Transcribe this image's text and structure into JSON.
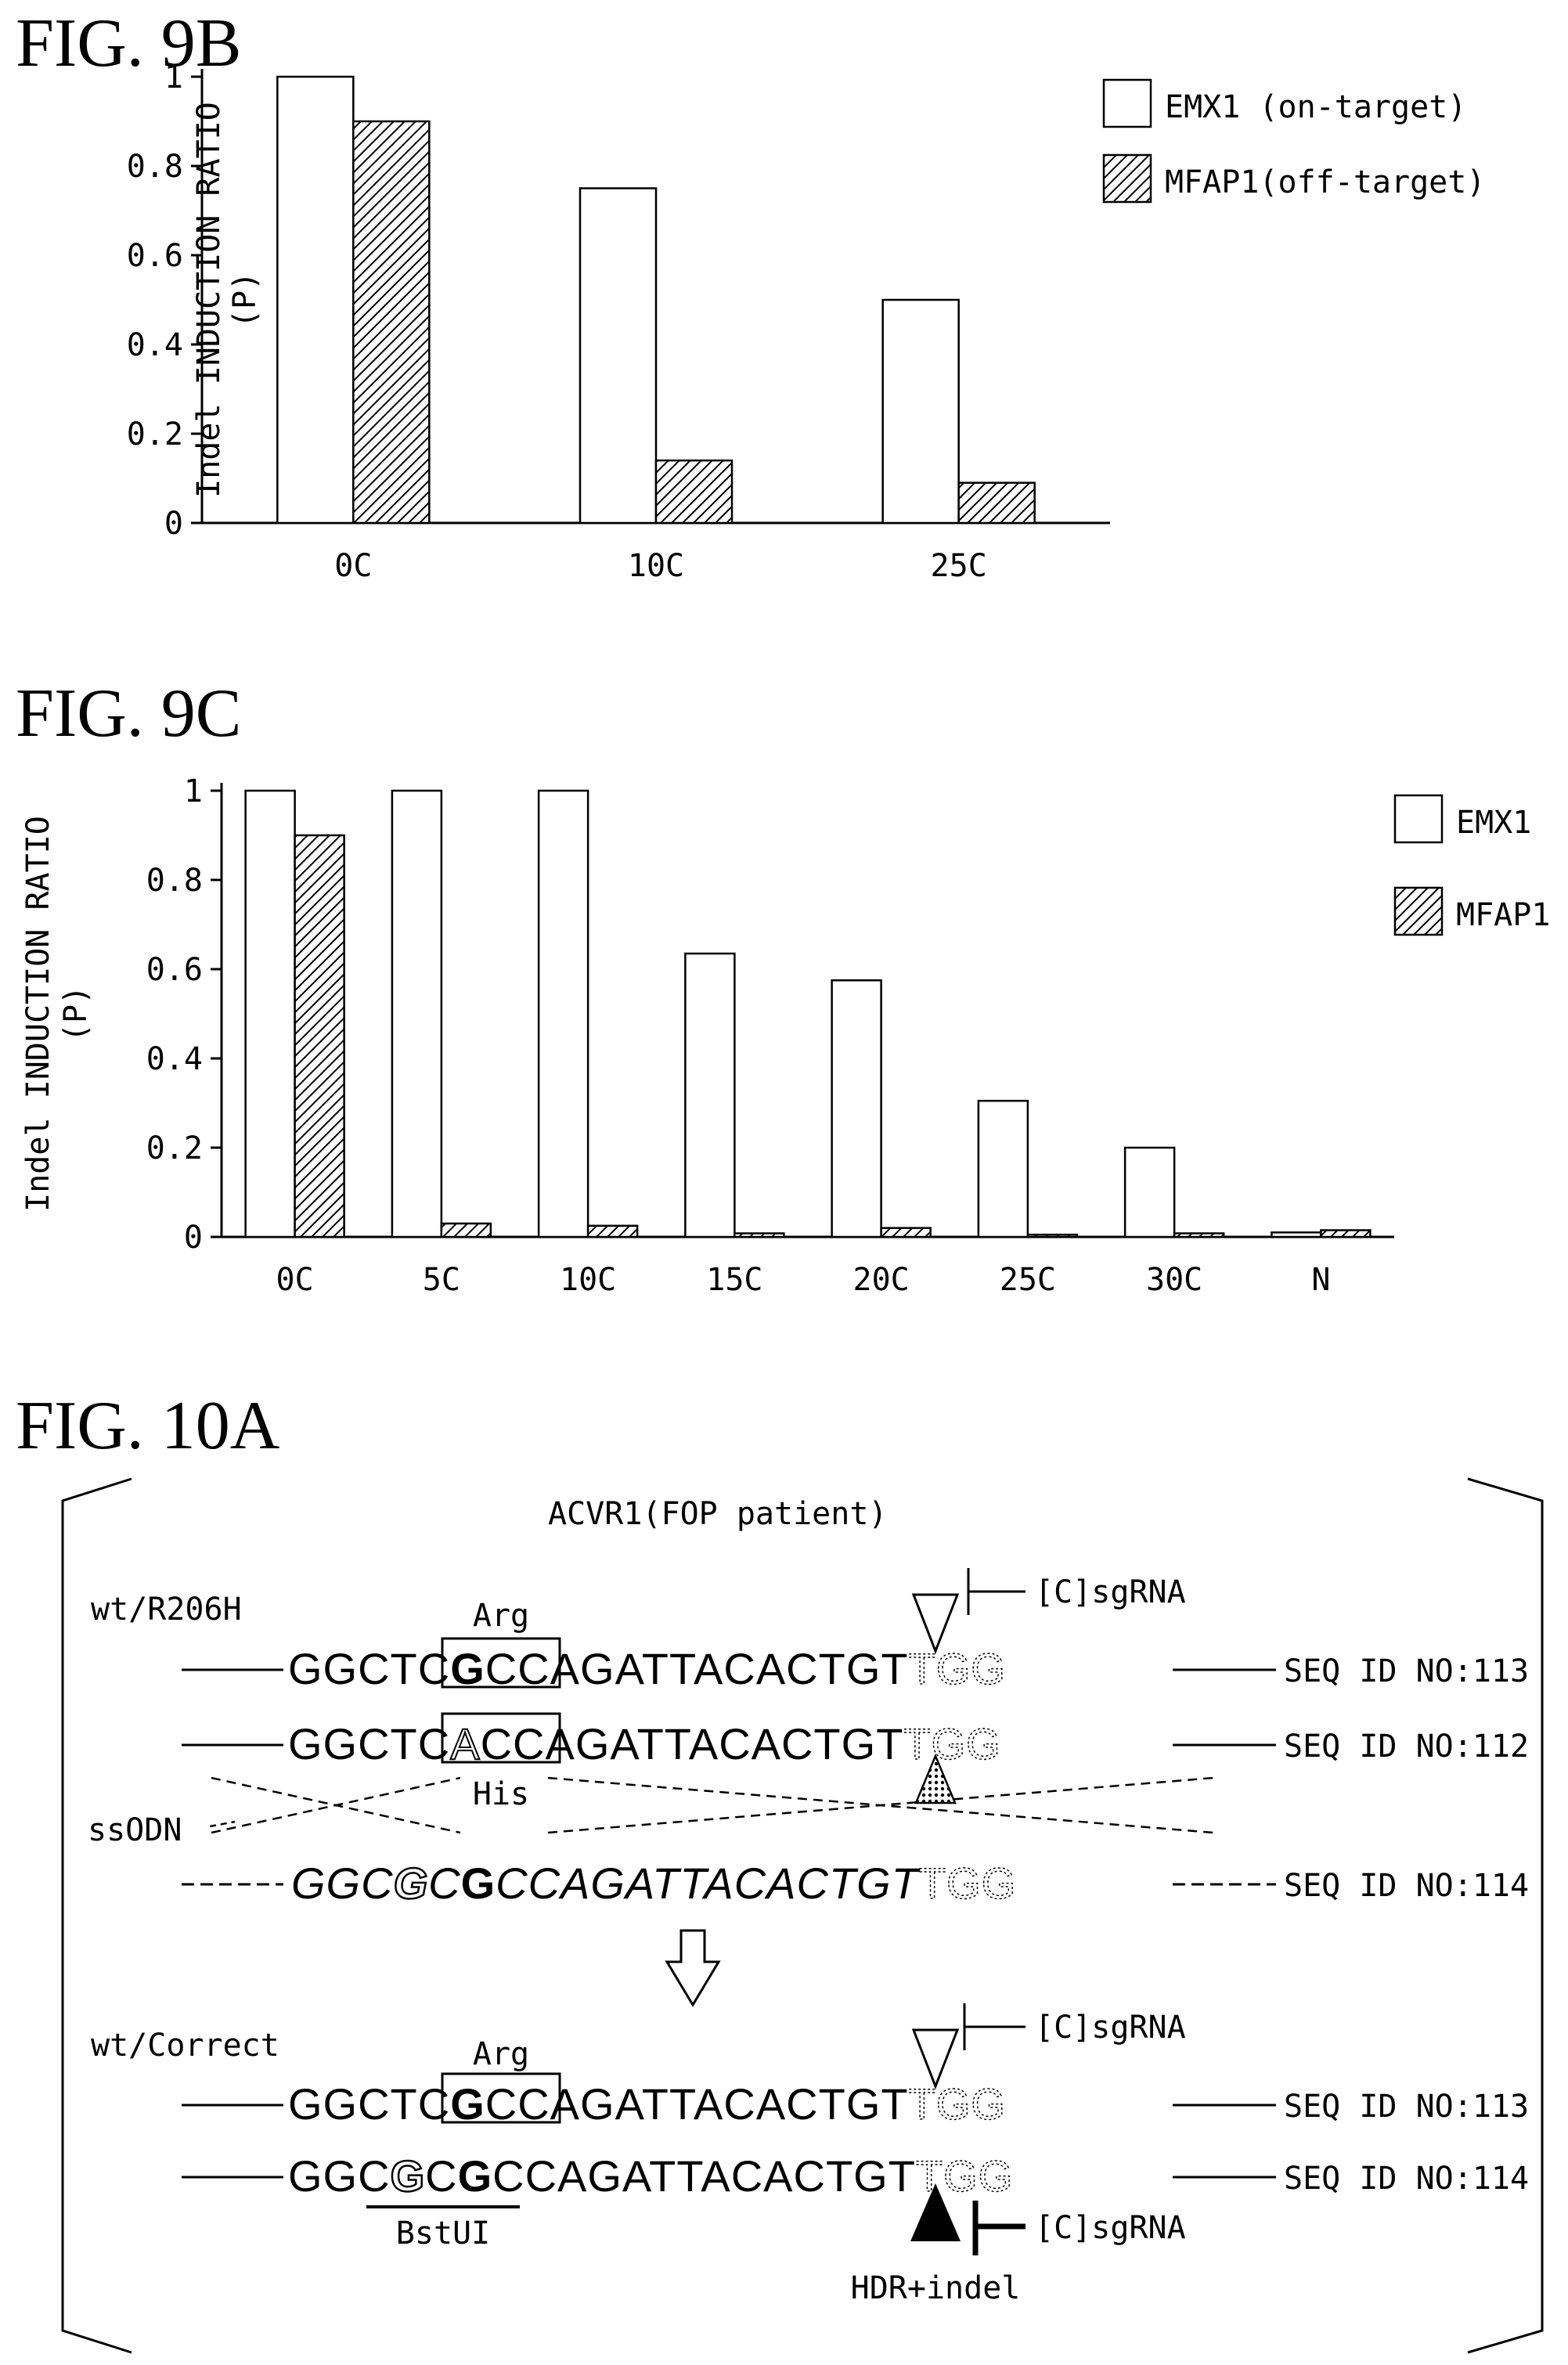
{
  "titles": {
    "fig9b": "FIG. 9B",
    "fig9c": "FIG. 9C",
    "fig10a": "FIG. 10A"
  },
  "chart_data": [
    {
      "id": "fig9b",
      "type": "bar",
      "ylabel_line1": "Indel INDUCTION RATIO",
      "ylabel_line2": "(P)",
      "ylim": [
        0,
        1
      ],
      "yticks": [
        "0",
        "0.2",
        "0.4",
        "0.6",
        "0.8",
        "1"
      ],
      "categories": [
        "0C",
        "10C",
        "25C"
      ],
      "series": [
        {
          "name": "EMX1 (on-target)",
          "fill": "white",
          "values": [
            1.0,
            0.75,
            0.5
          ]
        },
        {
          "name": "MFAP1(off-target)",
          "fill": "hatch",
          "values": [
            0.9,
            0.14,
            0.09
          ]
        }
      ],
      "legend": "top-right",
      "grid": false
    },
    {
      "id": "fig9c",
      "type": "bar",
      "ylabel_line1": "Indel INDUCTION RATIO",
      "ylabel_line2": "(P)",
      "ylim": [
        0,
        1
      ],
      "yticks": [
        "0",
        "0.2",
        "0.4",
        "0.6",
        "0.8",
        "1"
      ],
      "categories": [
        "0C",
        "5C",
        "10C",
        "15C",
        "20C",
        "25C",
        "30C",
        "N"
      ],
      "series": [
        {
          "name": "EMX1",
          "fill": "white",
          "values": [
            1.0,
            1.0,
            1.0,
            0.635,
            0.575,
            0.305,
            0.2,
            0.01
          ]
        },
        {
          "name": "MFAP1",
          "fill": "hatch",
          "values": [
            0.9,
            0.03,
            0.025,
            0.008,
            0.02,
            0.005,
            0.008,
            0.015
          ]
        }
      ],
      "legend": "top-right",
      "grid": false
    }
  ],
  "diagram": {
    "header": "ACVR1(FOP patient)",
    "wt_r206h": "wt/R206H",
    "wt_correct": "wt/Correct",
    "ssodn": "ssODN",
    "arg": "Arg",
    "his": "His",
    "sgrna": "[C]sgRNA",
    "bstui": "BstUI",
    "hdr_indel": "HDR+indel",
    "seq_id_113": "SEQ ID NO:113",
    "seq_id_112": "SEQ ID NO:112",
    "seq_id_114": "SEQ ID NO:114",
    "seq_r1": {
      "a": "GGCT",
      "b": "C",
      "c": "G",
      "d": "C",
      "e": "CAGATTACACTGT",
      "f": "TGG"
    },
    "seq_r2": {
      "a": "GGCT",
      "b": "C",
      "c": "A",
      "d": "C",
      "e": "CAGATTACACTGT",
      "f": "TGG"
    },
    "seq_r3": {
      "a": "GGC",
      "b": "G",
      "c": "C",
      "d": "G",
      "e": "CCAGATTACACTGT",
      "f": "TGG"
    },
    "seq_r4": {
      "a": "GGCT",
      "b": "C",
      "c": "G",
      "d": "C",
      "e": "CAGATTACACTGT",
      "f": "TGG"
    },
    "seq_r5": {
      "a": "GGC",
      "b": "G",
      "c": "C",
      "d": "G",
      "e": "CCAGATTACACTGT",
      "f": "TGG"
    }
  }
}
